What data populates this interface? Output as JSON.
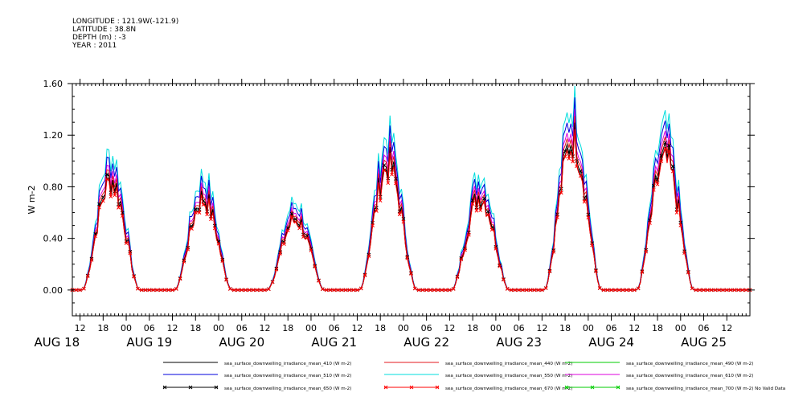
{
  "header": {
    "longitude": "LONGITUDE : 121.9W(-121.9)",
    "latitude": "LATITUDE : 38.8N",
    "depth": "DEPTH (m) : -3",
    "year": "YEAR : 2011"
  },
  "colors": {
    "ed410": "#000000",
    "ed440": "#e41a1c",
    "ed490": "#00cc00",
    "ed510": "#0000dd",
    "ed550": "#00dddd",
    "ed610": "#dd00dd",
    "ed650": "#000000",
    "ed670": "#ff0000",
    "ed700": "#00cc00"
  },
  "chart_data": {
    "type": "line",
    "title": "",
    "xlabel": "",
    "ylabel": "W m-2",
    "ylim": [
      -0.2,
      1.6
    ],
    "yticks": [
      0.0,
      0.4,
      0.8,
      1.2,
      1.6
    ],
    "ytick_labels": [
      "0.00",
      "0.40",
      "0.80",
      "1.20",
      "1.60"
    ],
    "x_unit": "hours since AUG 18 00:00 (2011)",
    "xlim": [
      10,
      186
    ],
    "xtick_hours": [
      12,
      18,
      24,
      30,
      36,
      42,
      48,
      54,
      60,
      66,
      72,
      78,
      84,
      90,
      96,
      102,
      108,
      114,
      120,
      126,
      132,
      138,
      144,
      150,
      156,
      162,
      168,
      174,
      180
    ],
    "xtick_labels": [
      "12",
      "18",
      "00",
      "06",
      "12",
      "18",
      "00",
      "06",
      "12",
      "18",
      "00",
      "06",
      "12",
      "18",
      "00",
      "06",
      "12",
      "18",
      "00",
      "06",
      "12",
      "18",
      "00",
      "06",
      "12",
      "18",
      "00",
      "06",
      "12"
    ],
    "date_labels": [
      {
        "label": "AUG 18",
        "hour": 6
      },
      {
        "label": "AUG 19",
        "hour": 30
      },
      {
        "label": "AUG 20",
        "hour": 54
      },
      {
        "label": "AUG 21",
        "hour": 78
      },
      {
        "label": "AUG 22",
        "hour": 102
      },
      {
        "label": "AUG 23",
        "hour": 126
      },
      {
        "label": "AUG 24",
        "hour": 150
      },
      {
        "label": "AUG 25",
        "hour": 174
      }
    ],
    "daily_peaks_650": [
      0.86,
      0.72,
      0.56,
      0.98,
      0.74,
      1.18,
      1.02
    ],
    "daily_peak_hour": [
      20,
      44,
      68,
      92,
      116,
      140,
      164
    ],
    "legend": [
      {
        "name": "sea_surface_downwelling_irradiance_mean_410 (W m-2)",
        "color_key": "ed410",
        "marker": "none"
      },
      {
        "name": "sea_surface_downwelling_irradiance_mean_440 (W m-2)",
        "color_key": "ed440",
        "marker": "none"
      },
      {
        "name": "sea_surface_downwelling_irradiance_mean_490 (W m-2)",
        "color_key": "ed490",
        "marker": "none"
      },
      {
        "name": "sea_surface_downwelling_irradiance_mean_510 (W m-2)",
        "color_key": "ed510",
        "marker": "none"
      },
      {
        "name": "sea_surface_downwelling_irradiance_mean_550 (W m-2)",
        "color_key": "ed550",
        "marker": "none"
      },
      {
        "name": "sea_surface_downwelling_irradiance_mean_610 (W m-2)",
        "color_key": "ed610",
        "marker": "none"
      },
      {
        "name": "sea_surface_downwelling_irradiance_mean_650 (W m-2)",
        "color_key": "ed650",
        "marker": "x"
      },
      {
        "name": "sea_surface_downwelling_irradiance_mean_670 (W m-2)",
        "color_key": "ed670",
        "marker": "x"
      },
      {
        "name": "sea_surface_downwelling_irradiance_mean_700 (W m-2) No Valid Data",
        "color_key": "ed700",
        "marker": "x"
      }
    ],
    "series_order": [
      {
        "key": "ed550",
        "scale": 1.22,
        "marker": "none"
      },
      {
        "key": "ed510",
        "scale": 1.15,
        "marker": "none"
      },
      {
        "key": "ed610",
        "scale": 1.08,
        "marker": "none"
      },
      {
        "key": "ed440",
        "scale": 1.04,
        "marker": "none"
      },
      {
        "key": "ed410",
        "scale": 0.97,
        "marker": "none"
      },
      {
        "key": "ed650",
        "scale": 1.0,
        "marker": "x"
      },
      {
        "key": "ed670",
        "scale": 0.96,
        "marker": "x"
      }
    ]
  }
}
